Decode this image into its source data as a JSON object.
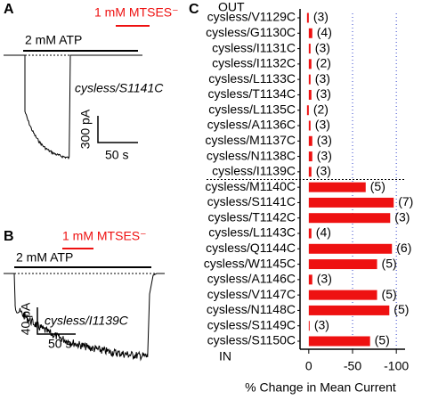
{
  "panel_a": {
    "label": "A",
    "drug": "1 mM MTSES⁻",
    "atp": "2 mM ATP",
    "construct": "cysless/S1141C",
    "current_scale": "300 pA",
    "time_scale": "50 s"
  },
  "panel_b": {
    "label": "B",
    "drug": "1 mM MTSES⁻",
    "atp": "2 mM ATP",
    "construct": "cysless/I1139C",
    "current_scale": "40 pA",
    "time_scale": "50 s"
  },
  "chart_data": {
    "type": "hbar",
    "panel_label": "C",
    "top_label": "OUT",
    "bottom_label": "IN",
    "xlabel": "% Change in Mean Current",
    "categories": [
      "cysless/V1129C",
      "cysless/G1130C",
      "cysless/I1131C",
      "cysless/I1132C",
      "cysless/L1133C",
      "cysless/T1134C",
      "cysless/L1135C",
      "cysless/A1136C",
      "cysless/M1137C",
      "cysless/N1138C",
      "cysless/I1139C",
      "cysless/M1140C",
      "cysless/S1141C",
      "cysless/T1142C",
      "cysless/L1143C",
      "cysless/Q1144C",
      "cysless/W1145C",
      "cysless/A1146C",
      "cysless/V1147C",
      "cysless/N1148C",
      "cysless/S1149C",
      "cysless/S1150C"
    ],
    "values": [
      2,
      -4,
      -2,
      -3,
      -2,
      -3,
      2,
      -2,
      -4,
      -4,
      -3,
      -65,
      -97,
      -93,
      -3,
      -95,
      -78,
      -4,
      -78,
      -92,
      -1,
      -70
    ],
    "n_labels": [
      "(3)",
      "(4)",
      "(3)",
      "(2)",
      "(3)",
      "(3)",
      "(2)",
      "(3)",
      "(3)",
      "(3)",
      "(3)",
      "(5)",
      "(7)",
      "(3)",
      "(4)",
      "(6)",
      "(5)",
      "(3)",
      "(5)",
      "(5)",
      "(3)",
      "(5)"
    ],
    "color": "#ee1111",
    "xlim": [
      10,
      -110
    ],
    "xticks": [
      0,
      -50,
      -100
    ],
    "grid": true,
    "grid_color": "#3344cc"
  }
}
